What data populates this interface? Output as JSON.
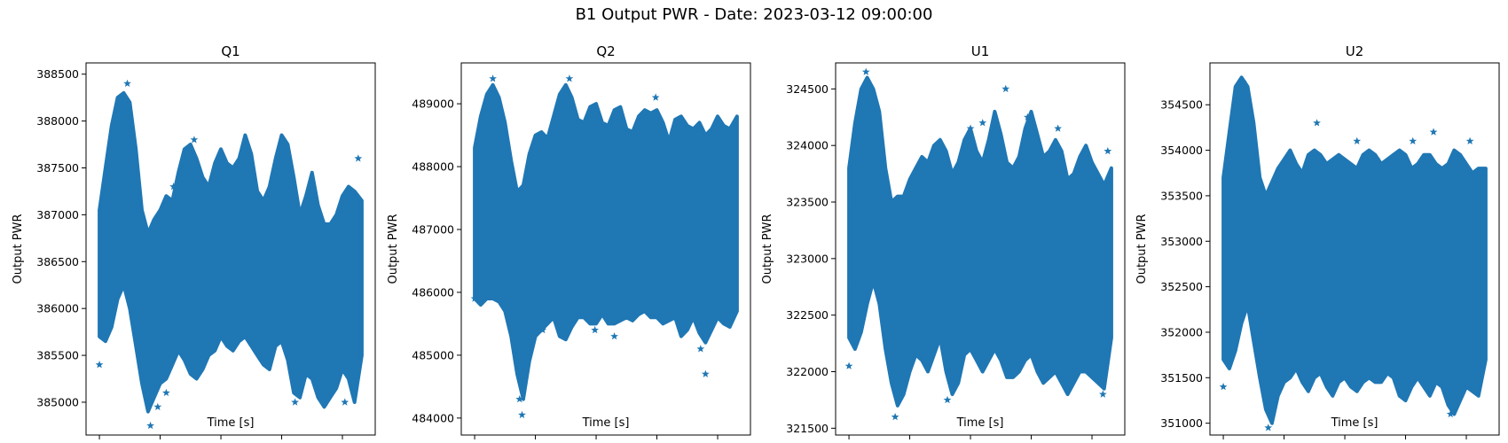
{
  "suptitle": "B1 Output PWR - Date: 2023-03-12 09:00:00",
  "colors": {
    "marker": "#1f77b4",
    "axes": "#000000",
    "background": "#ffffff"
  },
  "chart_data": [
    {
      "type": "scatter",
      "marker": "star",
      "title": "Q1",
      "xlabel": "Time [s]",
      "ylabel": "Output PWR",
      "xlim": [
        -1100,
        22700
      ],
      "ylim": [
        384650,
        388620
      ],
      "xticks": [
        0,
        5000,
        10000,
        15000,
        20000
      ],
      "yticks": [
        385000,
        385500,
        386000,
        386500,
        387000,
        387500,
        388000,
        388500
      ],
      "envelope": {
        "x": [
          0,
          500,
          1000,
          1500,
          2000,
          2500,
          3000,
          3500,
          4000,
          4500,
          5000,
          5500,
          6000,
          6500,
          7000,
          7500,
          8000,
          8500,
          9000,
          9500,
          10000,
          10500,
          11000,
          11500,
          12000,
          12500,
          13000,
          13500,
          14000,
          14500,
          15000,
          15500,
          16000,
          16500,
          17000,
          17500,
          18000,
          18500,
          19000,
          19500,
          20000,
          20500,
          21000,
          21600
        ],
        "upper": [
          387050,
          387500,
          387950,
          388250,
          388300,
          388200,
          387700,
          387050,
          386800,
          386950,
          387050,
          387200,
          387150,
          387450,
          387700,
          387750,
          387600,
          387400,
          387300,
          387550,
          387700,
          387550,
          387500,
          387600,
          387850,
          387650,
          387250,
          387150,
          387300,
          387600,
          387850,
          387750,
          387400,
          387000,
          387200,
          387450,
          387100,
          386900,
          386900,
          387000,
          387200,
          387300,
          387250,
          387150
        ],
        "lower": [
          385700,
          385650,
          385800,
          386100,
          386250,
          386000,
          385600,
          385200,
          384900,
          385050,
          385200,
          385250,
          385400,
          385550,
          385450,
          385300,
          385250,
          385350,
          385500,
          385550,
          385700,
          385600,
          385550,
          385650,
          385700,
          385600,
          385500,
          385400,
          385350,
          385600,
          385650,
          385450,
          385100,
          385050,
          385300,
          385250,
          385050,
          384950,
          385050,
          385150,
          385350,
          385250,
          385000,
          385500
        ]
      },
      "outliers": [
        [
          0,
          385400
        ],
        [
          2300,
          388400
        ],
        [
          4200,
          384750
        ],
        [
          4800,
          384950
        ],
        [
          5500,
          385100
        ],
        [
          6100,
          387300
        ],
        [
          7800,
          387800
        ],
        [
          14200,
          385600
        ],
        [
          16100,
          385000
        ],
        [
          18600,
          385000
        ],
        [
          20200,
          385000
        ],
        [
          21300,
          387600
        ]
      ]
    },
    {
      "type": "scatter",
      "marker": "star",
      "title": "Q2",
      "xlabel": "Time [s]",
      "ylabel": "Output PWR",
      "xlim": [
        -1100,
        22700
      ],
      "ylim": [
        483730,
        489650
      ],
      "xticks": [
        0,
        5000,
        10000,
        15000,
        20000
      ],
      "yticks": [
        484000,
        485000,
        486000,
        487000,
        488000,
        489000
      ],
      "envelope": {
        "x": [
          0,
          500,
          1000,
          1500,
          2000,
          2500,
          3000,
          3500,
          4000,
          4500,
          5000,
          5500,
          6000,
          6500,
          7000,
          7500,
          8000,
          8500,
          9000,
          9500,
          10000,
          10500,
          11000,
          11500,
          12000,
          12500,
          13000,
          13500,
          14000,
          14500,
          15000,
          15500,
          16000,
          16500,
          17000,
          17500,
          18000,
          18500,
          19000,
          19500,
          20000,
          20500,
          21000,
          21600
        ],
        "upper": [
          488300,
          488800,
          489150,
          489300,
          489100,
          488700,
          488100,
          487600,
          487700,
          488200,
          488500,
          488550,
          488450,
          488800,
          489150,
          489300,
          489100,
          488750,
          488700,
          488950,
          489000,
          488700,
          488650,
          488900,
          488950,
          488600,
          488550,
          488800,
          488900,
          488850,
          488900,
          488700,
          488400,
          488750,
          488800,
          488650,
          488600,
          488700,
          488500,
          488600,
          488800,
          488650,
          488600,
          488800
        ],
        "lower": [
          485900,
          485800,
          485900,
          485900,
          485850,
          485700,
          485300,
          484700,
          484300,
          484900,
          485300,
          485400,
          485500,
          485600,
          485300,
          485250,
          485450,
          485600,
          485600,
          485500,
          485500,
          485650,
          485500,
          485500,
          485550,
          485600,
          485550,
          485650,
          485700,
          485600,
          485600,
          485500,
          485550,
          485600,
          485300,
          485400,
          485600,
          485350,
          485200,
          485400,
          485600,
          485500,
          485450,
          485700
        ]
      },
      "outliers": [
        [
          0,
          485900
        ],
        [
          1500,
          489400
        ],
        [
          3700,
          484300
        ],
        [
          3900,
          484050
        ],
        [
          5600,
          485400
        ],
        [
          7800,
          489400
        ],
        [
          9900,
          485400
        ],
        [
          11500,
          485300
        ],
        [
          14900,
          489100
        ],
        [
          18600,
          485100
        ],
        [
          19000,
          484700
        ]
      ]
    },
    {
      "type": "scatter",
      "marker": "star",
      "title": "U1",
      "xlabel": "Time [s]",
      "ylabel": "Output PWR",
      "xlim": [
        -1100,
        22700
      ],
      "ylim": [
        321440,
        324730
      ],
      "xticks": [
        0,
        5000,
        10000,
        15000,
        20000
      ],
      "yticks": [
        321500,
        322000,
        322500,
        323000,
        323500,
        324000,
        324500
      ],
      "envelope": {
        "x": [
          0,
          500,
          1000,
          1500,
          2000,
          2500,
          3000,
          3500,
          4000,
          4500,
          5000,
          5500,
          6000,
          6500,
          7000,
          7500,
          8000,
          8500,
          9000,
          9500,
          10000,
          10500,
          11000,
          11500,
          12000,
          12500,
          13000,
          13500,
          14000,
          14500,
          15000,
          15500,
          16000,
          16500,
          17000,
          17500,
          18000,
          18500,
          19000,
          19500,
          20000,
          20500,
          21000,
          21600
        ],
        "upper": [
          323800,
          324200,
          324500,
          324600,
          324500,
          324300,
          323800,
          323500,
          323550,
          323550,
          323700,
          323800,
          323900,
          323850,
          324000,
          324050,
          323950,
          323750,
          323850,
          324050,
          324150,
          323950,
          323850,
          324050,
          324300,
          324100,
          323850,
          323800,
          323900,
          324150,
          324300,
          324100,
          323900,
          323950,
          324050,
          323950,
          323700,
          323750,
          323900,
          324000,
          323850,
          323750,
          323650,
          323800
        ],
        "lower": [
          322300,
          322200,
          322350,
          322600,
          322800,
          322600,
          322200,
          321900,
          321700,
          321800,
          322000,
          322150,
          322100,
          322000,
          322150,
          322300,
          322000,
          321800,
          321900,
          322150,
          322200,
          322100,
          322000,
          322100,
          322200,
          322100,
          321950,
          321950,
          322000,
          322100,
          322150,
          322000,
          321900,
          321950,
          322000,
          321900,
          321800,
          321900,
          322000,
          322000,
          321950,
          321900,
          321850,
          322300
        ]
      },
      "outliers": [
        [
          0,
          322050
        ],
        [
          1400,
          324650
        ],
        [
          3800,
          321600
        ],
        [
          8100,
          321750
        ],
        [
          10000,
          324150
        ],
        [
          11000,
          324200
        ],
        [
          12900,
          324500
        ],
        [
          14700,
          324250
        ],
        [
          17200,
          324150
        ],
        [
          20800,
          322250
        ],
        [
          20900,
          321800
        ],
        [
          21300,
          323950
        ]
      ]
    },
    {
      "type": "scatter",
      "marker": "star",
      "title": "U2",
      "xlabel": "Time [s]",
      "ylabel": "Output PWR",
      "xlim": [
        -1100,
        22700
      ],
      "ylim": [
        350870,
        354960
      ],
      "xticks": [
        0,
        5000,
        10000,
        15000,
        20000
      ],
      "yticks": [
        351000,
        351500,
        352000,
        352500,
        353000,
        353500,
        354000,
        354500
      ],
      "envelope": {
        "x": [
          0,
          500,
          1000,
          1500,
          2000,
          2500,
          3000,
          3500,
          4000,
          4500,
          5000,
          5500,
          6000,
          6500,
          7000,
          7500,
          8000,
          8500,
          9000,
          9500,
          10000,
          10500,
          11000,
          11500,
          12000,
          12500,
          13000,
          13500,
          14000,
          14500,
          15000,
          15500,
          16000,
          16500,
          17000,
          17500,
          18000,
          18500,
          19000,
          19500,
          20000,
          20500,
          21000,
          21600
        ],
        "upper": [
          353700,
          354200,
          354700,
          354800,
          354700,
          354300,
          353700,
          353500,
          353650,
          353800,
          353900,
          354000,
          353850,
          353750,
          353950,
          354000,
          353950,
          353850,
          353900,
          353950,
          353900,
          353850,
          353800,
          353950,
          354000,
          353950,
          353850,
          353900,
          353950,
          354000,
          353950,
          353800,
          353850,
          353950,
          353950,
          353850,
          353800,
          353850,
          354000,
          353950,
          353850,
          353750,
          353800,
          353800
        ],
        "lower": [
          351700,
          351600,
          351800,
          352100,
          352300,
          351900,
          351500,
          351150,
          351000,
          351300,
          351450,
          351500,
          351600,
          351450,
          351350,
          351500,
          351550,
          351400,
          351300,
          351450,
          351500,
          351400,
          351350,
          351450,
          351500,
          351450,
          351450,
          351550,
          351500,
          351300,
          351250,
          351400,
          351500,
          351400,
          351300,
          351450,
          351400,
          351200,
          351100,
          351250,
          351400,
          351350,
          351300,
          351700
        ]
      },
      "outliers": [
        [
          0,
          351400
        ],
        [
          1600,
          354750
        ],
        [
          3700,
          350950
        ],
        [
          7700,
          354300
        ],
        [
          11000,
          354100
        ],
        [
          12600,
          353900
        ],
        [
          15600,
          354100
        ],
        [
          17300,
          354200
        ],
        [
          18700,
          351100
        ],
        [
          20300,
          354100
        ],
        [
          21200,
          351600
        ]
      ]
    }
  ]
}
